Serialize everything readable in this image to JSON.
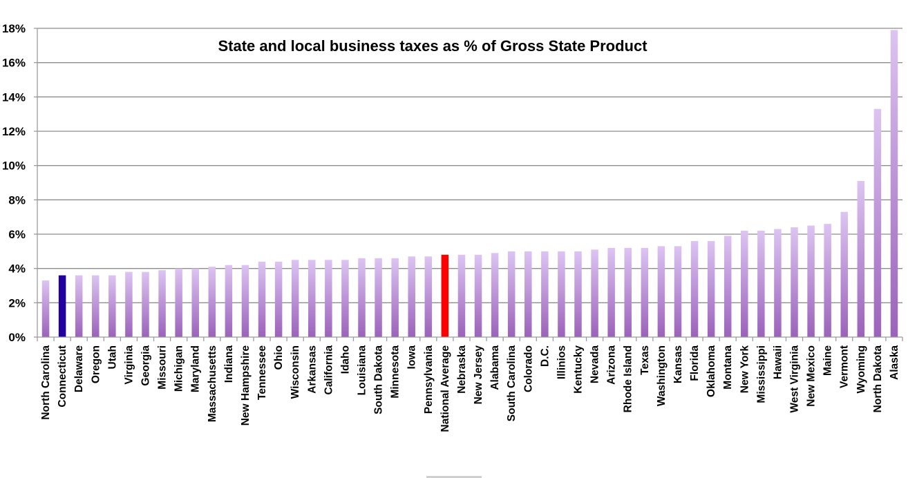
{
  "chart_data": {
    "type": "bar",
    "title": "State and local business taxes as % of Gross State Product",
    "xlabel": "",
    "ylabel": "",
    "ylim": [
      0,
      18
    ],
    "grid": true,
    "legend": "none",
    "yticks": [
      0,
      2,
      4,
      6,
      8,
      10,
      12,
      14,
      16,
      18
    ],
    "ytick_labels": [
      "0%",
      "2%",
      "4%",
      "6%",
      "8%",
      "10%",
      "12%",
      "14%",
      "16%",
      "18%"
    ],
    "categories": [
      "North Carolina",
      "Connecticut",
      "Delaware",
      "Oregon",
      "Utah",
      "Virginia",
      "Georgia",
      "Missouri",
      "Michigan",
      "Maryland",
      "Massachusetts",
      "Indiana",
      "New Hampshire",
      "Tennessee",
      "Ohio",
      "Wisconsin",
      "Arkansas",
      "California",
      "Idaho",
      "Louisiana",
      "South Dakota",
      "Minnesota",
      "Iowa",
      "Pennsylvania",
      "National Average",
      "Nebraska",
      "New Jersey",
      "Alabama",
      "South Carolina",
      "Colorado",
      "D.C.",
      "Illinios",
      "Kentucky",
      "Nevada",
      "Arizona",
      "Rhode Island",
      "Texas",
      "Washington",
      "Kansas",
      "Florida",
      "Oklahoma",
      "Montana",
      "New York",
      "Mississippi",
      "Hawaii",
      "West Virginia",
      "New Mexico",
      "Maine",
      "Vermont",
      "Wyoming",
      "North Dakota",
      "Alaska"
    ],
    "values": [
      3.3,
      3.6,
      3.6,
      3.6,
      3.6,
      3.8,
      3.8,
      3.9,
      4.0,
      4.0,
      4.1,
      4.2,
      4.2,
      4.4,
      4.4,
      4.5,
      4.5,
      4.5,
      4.5,
      4.6,
      4.6,
      4.6,
      4.7,
      4.7,
      4.8,
      4.8,
      4.8,
      4.9,
      5.0,
      5.0,
      5.0,
      5.0,
      5.0,
      5.1,
      5.2,
      5.2,
      5.2,
      5.3,
      5.3,
      5.6,
      5.6,
      5.9,
      6.2,
      6.2,
      6.3,
      6.4,
      6.5,
      6.6,
      7.3,
      9.1,
      13.3,
      17.9
    ],
    "highlights": {
      "Connecticut": "#2200a0",
      "National Average": "#ff0000"
    },
    "bar_gradient": {
      "top": "#dcc4f2",
      "bottom": "#9b62ba"
    }
  }
}
